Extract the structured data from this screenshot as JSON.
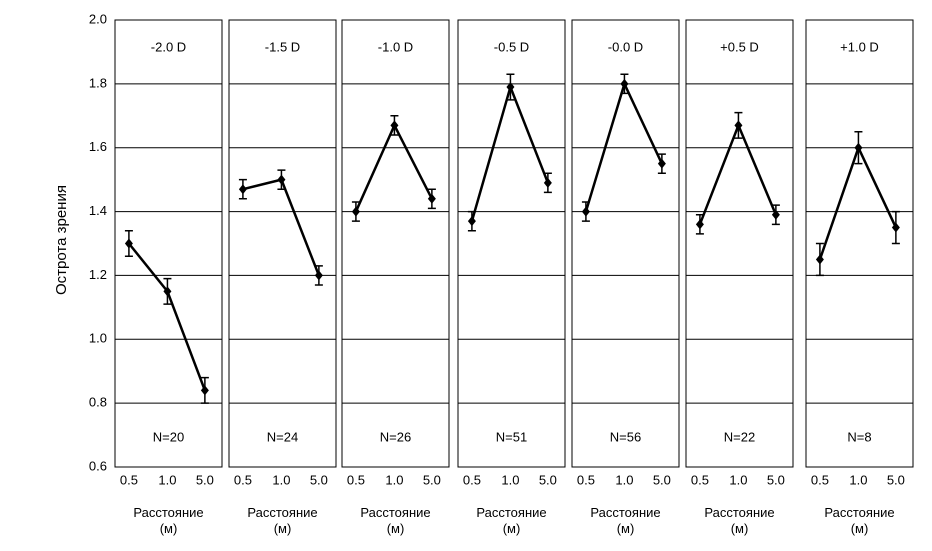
{
  "chart_data": [
    {
      "type": "line",
      "title": "-2.0 D",
      "annotation": "N=20",
      "ylabel": "Острота зрения",
      "xlabel": "Расстояние (м)",
      "categories": [
        "0.5",
        "1.0",
        "5.0"
      ],
      "values": [
        1.3,
        1.15,
        0.84
      ],
      "errors": [
        0.04,
        0.04,
        0.04
      ],
      "color": "#000000",
      "ylim": [
        0.6,
        2.0
      ],
      "grid": true,
      "yticks": [
        {
          "value": 0.6,
          "label": "0.6"
        },
        {
          "value": 0.8,
          "label": "0.8"
        },
        {
          "value": 1,
          "label": "1.0"
        },
        {
          "value": 1.2,
          "label": "1.2"
        },
        {
          "value": 1.4,
          "label": "1.4"
        },
        {
          "value": 1.6,
          "label": "1.6"
        },
        {
          "value": 1.8,
          "label": "1.8"
        },
        {
          "value": 2,
          "label": "2.0"
        }
      ]
    },
    {
      "type": "line",
      "title": "-1.5 D",
      "annotation": "N=24",
      "xlabel": "Расстояние (м)",
      "categories": [
        "0.5",
        "1.0",
        "5.0"
      ],
      "values": [
        1.47,
        1.5,
        1.2
      ],
      "errors": [
        0.03,
        0.03,
        0.03
      ],
      "color": "#000000",
      "ylim": [
        0.6,
        2.0
      ],
      "grid": true
    },
    {
      "type": "line",
      "title": "-1.0 D",
      "annotation": "N=26",
      "xlabel": "Расстояние (м)",
      "categories": [
        "0.5",
        "1.0",
        "5.0"
      ],
      "values": [
        1.4,
        1.67,
        1.44
      ],
      "errors": [
        0.03,
        0.03,
        0.03
      ],
      "color": "#000000",
      "ylim": [
        0.6,
        2.0
      ],
      "grid": true
    },
    {
      "type": "line",
      "title": "-0.5 D",
      "annotation": "N=51",
      "xlabel": "Расстояние (м)",
      "categories": [
        "0.5",
        "1.0",
        "5.0"
      ],
      "values": [
        1.37,
        1.79,
        1.49
      ],
      "errors": [
        0.03,
        0.04,
        0.03
      ],
      "color": "#000000",
      "ylim": [
        0.6,
        2.0
      ],
      "grid": true
    },
    {
      "type": "line",
      "title": "-0.0 D",
      "annotation": "N=56",
      "xlabel": "Расстояние (м)",
      "categories": [
        "0.5",
        "1.0",
        "5.0"
      ],
      "values": [
        1.4,
        1.8,
        1.55
      ],
      "errors": [
        0.03,
        0.03,
        0.03
      ],
      "color": "#000000",
      "ylim": [
        0.6,
        2.0
      ],
      "grid": true
    },
    {
      "type": "line",
      "title": "+0.5 D",
      "annotation": "N=22",
      "xlabel": "Расстояние (м)",
      "categories": [
        "0.5",
        "1.0",
        "5.0"
      ],
      "values": [
        1.36,
        1.67,
        1.39
      ],
      "errors": [
        0.03,
        0.04,
        0.03
      ],
      "color": "#000000",
      "ylim": [
        0.6,
        2.0
      ],
      "grid": true
    },
    {
      "type": "line",
      "title": "+1.0 D",
      "annotation": "N=8",
      "xlabel": "Расстояние (м)",
      "categories": [
        "0.5",
        "1.0",
        "5.0"
      ],
      "values": [
        1.25,
        1.6,
        1.35
      ],
      "errors": [
        0.05,
        0.05,
        0.05
      ],
      "color": "#000000",
      "ylim": [
        0.6,
        2.0
      ],
      "grid": true
    }
  ]
}
